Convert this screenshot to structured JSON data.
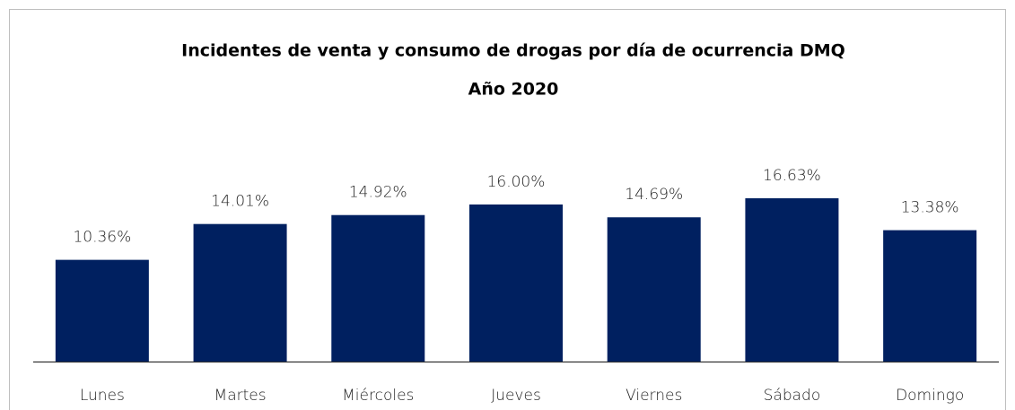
{
  "chart_data": {
    "type": "bar",
    "title": "Incidentes de venta y consumo de drogas por día de ocurrencia DMQ",
    "subtitle": "Año 2020",
    "categories": [
      "Lunes",
      "Martes",
      "Miércoles",
      "Jueves",
      "Viernes",
      "Sábado",
      "Domingo"
    ],
    "values": [
      10.36,
      14.01,
      14.92,
      16.0,
      14.69,
      16.63,
      13.38
    ],
    "value_labels": [
      "10.36%",
      "14.01%",
      "14.92%",
      "16.00%",
      "14.69%",
      "16.63%",
      "13.38%"
    ],
    "color": "#002060"
  }
}
